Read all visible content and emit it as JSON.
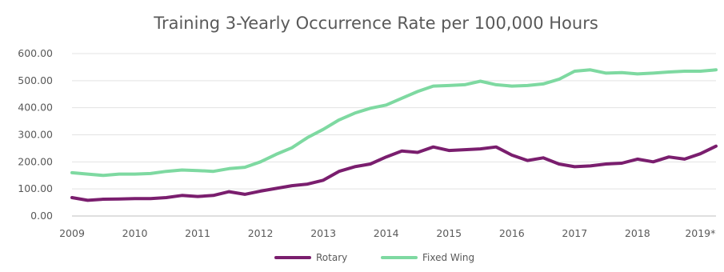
{
  "chart_data": {
    "type": "line",
    "title": "Training 3-Yearly Occurrence Rate per 100,000 Hours",
    "xlabel": "",
    "ylabel": "",
    "ylim": [
      0,
      600
    ],
    "y_ticks": [
      "0.00",
      "100.00",
      "200.00",
      "300.00",
      "400.00",
      "500.00",
      "600.00"
    ],
    "x_ticks": [
      "2009",
      "2010",
      "2011",
      "2012",
      "2013",
      "2014",
      "2015",
      "2016",
      "2017",
      "2018",
      "2019*"
    ],
    "xlim": [
      2009,
      2019.25
    ],
    "grid": "horizontal",
    "legend_position": "bottom",
    "x": [
      2009.0,
      2009.25,
      2009.5,
      2009.75,
      2010.0,
      2010.25,
      2010.5,
      2010.75,
      2011.0,
      2011.25,
      2011.5,
      2011.75,
      2012.0,
      2012.25,
      2012.5,
      2012.75,
      2013.0,
      2013.25,
      2013.5,
      2013.75,
      2014.0,
      2014.25,
      2014.5,
      2014.75,
      2015.0,
      2015.25,
      2015.5,
      2015.75,
      2016.0,
      2016.25,
      2016.5,
      2016.75,
      2017.0,
      2017.25,
      2017.5,
      2017.75,
      2018.0,
      2018.25,
      2018.5,
      2018.75,
      2019.0,
      2019.25
    ],
    "series": [
      {
        "name": "Rotary",
        "color": "#7a1e6e",
        "values": [
          68,
          58,
          62,
          63,
          64,
          64,
          68,
          76,
          72,
          76,
          90,
          80,
          92,
          102,
          112,
          118,
          132,
          165,
          182,
          192,
          218,
          240,
          235,
          255,
          242,
          245,
          248,
          255,
          225,
          205,
          215,
          192,
          182,
          185,
          192,
          195,
          210,
          200,
          218,
          210,
          230,
          258
        ]
      },
      {
        "name": "Fixed Wing",
        "color": "#7ed9a1",
        "values": [
          160,
          155,
          150,
          155,
          155,
          157,
          165,
          170,
          168,
          165,
          175,
          180,
          200,
          228,
          252,
          290,
          320,
          355,
          380,
          398,
          410,
          435,
          460,
          480,
          482,
          485,
          498,
          485,
          480,
          482,
          488,
          505,
          535,
          540,
          528,
          530,
          525,
          528,
          532,
          535,
          535,
          540
        ]
      }
    ]
  }
}
